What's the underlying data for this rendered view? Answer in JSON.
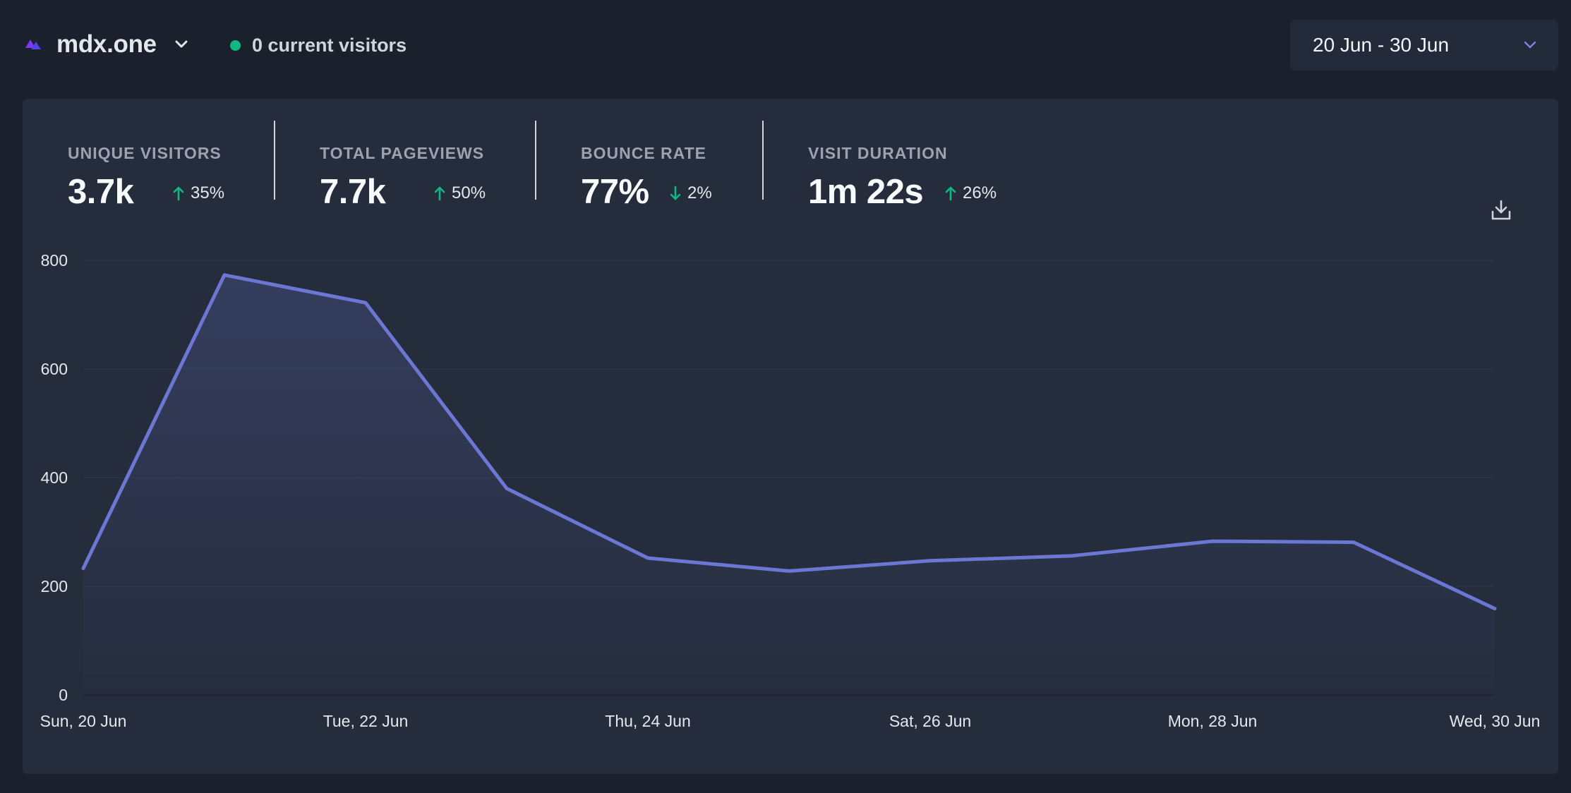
{
  "header": {
    "site_name": "mdx.one",
    "live_visitors": "0 current visitors",
    "date_range": "20 Jun - 30 Jun"
  },
  "stats": [
    {
      "label": "UNIQUE VISITORS",
      "value": "3.7k",
      "change": "35%",
      "direction": "up"
    },
    {
      "label": "TOTAL PAGEVIEWS",
      "value": "7.7k",
      "change": "50%",
      "direction": "up"
    },
    {
      "label": "BOUNCE RATE",
      "value": "77%",
      "change": "2%",
      "direction": "down"
    },
    {
      "label": "VISIT DURATION",
      "value": "1m 22s",
      "change": "26%",
      "direction": "up"
    }
  ],
  "colors": {
    "line": "#6c76d3",
    "up_arrow": "#10b981",
    "down_arrow": "#10b981",
    "live_dot": "#10b981",
    "accent": "#7c7fe8"
  },
  "icons": {
    "logo": "logo-icon",
    "site_dropdown": "chevron-down-icon",
    "range_dropdown": "chevron-down-icon",
    "download": "download-icon"
  },
  "chart_data": {
    "type": "area",
    "x": [
      "Sun, 20 Jun",
      "Mon, 21 Jun",
      "Tue, 22 Jun",
      "Wed, 23 Jun",
      "Thu, 24 Jun",
      "Fri, 25 Jun",
      "Sat, 26 Jun",
      "Sun, 27 Jun",
      "Mon, 28 Jun",
      "Tue, 29 Jun",
      "Wed, 30 Jun"
    ],
    "x_tick_labels": [
      "Sun, 20 Jun",
      "Tue, 22 Jun",
      "Thu, 24 Jun",
      "Sat, 26 Jun",
      "Mon, 28 Jun",
      "Wed, 30 Jun"
    ],
    "series": [
      {
        "values": [
          233,
          773,
          722,
          380,
          252,
          228,
          247,
          256,
          283,
          281,
          159
        ]
      }
    ],
    "ylim": [
      0,
      800
    ],
    "yticks": [
      0,
      200,
      400,
      600,
      800
    ],
    "grid": true,
    "title": "",
    "xlabel": "",
    "ylabel": ""
  }
}
